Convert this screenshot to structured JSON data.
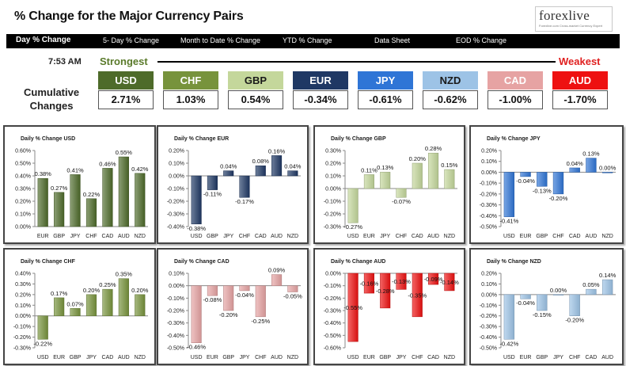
{
  "header": {
    "title": "% Change for the Major Currency Pairs",
    "logo_text": "forexlive",
    "logo_subtext": "Forexlive.com Cross-market Currency Expert"
  },
  "nav": [
    {
      "label": "Day % Change",
      "active": true
    },
    {
      "label": "5- Day % Change",
      "active": false
    },
    {
      "label": "Month to Date % Change",
      "active": false
    },
    {
      "label": "YTD % Change",
      "active": false
    },
    {
      "label": "Data Sheet",
      "active": false
    },
    {
      "label": "EOD % Change",
      "active": false
    }
  ],
  "ranking": {
    "time": "7:53 AM",
    "strongest_label": "Strongest",
    "weakest_label": "Weakest",
    "cumulative_label_line1": "Cumulative",
    "cumulative_label_line2": "Changes",
    "currencies": [
      {
        "name": "USD",
        "value": "2.71%",
        "color": "#4e6b2a",
        "text_color": "#ffffff"
      },
      {
        "name": "CHF",
        "value": "1.03%",
        "color": "#77933c",
        "text_color": "#ffffff"
      },
      {
        "name": "GBP",
        "value": "0.54%",
        "color": "#c4d79b",
        "text_color": "#1a1a1a"
      },
      {
        "name": "EUR",
        "value": "-0.34%",
        "color": "#1f3864",
        "text_color": "#ffffff"
      },
      {
        "name": "JPY",
        "value": "-0.61%",
        "color": "#2f75d6",
        "text_color": "#ffffff"
      },
      {
        "name": "NZD",
        "value": "-0.62%",
        "color": "#9dc3e6",
        "text_color": "#1a1a1a"
      },
      {
        "name": "CAD",
        "value": "-1.00%",
        "color": "#e6a3a3",
        "text_color": "#ffffff"
      },
      {
        "name": "AUD",
        "value": "-1.70%",
        "color": "#ee1111",
        "text_color": "#ffffff"
      }
    ]
  },
  "chart_data": [
    {
      "type": "bar",
      "title": "Daily % Change USD",
      "color": "#4e6b2a",
      "label_pos": "end",
      "categories": [
        "EUR",
        "GBP",
        "JPY",
        "CHF",
        "CAD",
        "AUD",
        "NZD"
      ],
      "values": [
        0.38,
        0.27,
        0.41,
        0.22,
        0.46,
        0.55,
        0.42
      ],
      "value_labels": [
        "0.38%",
        "0.27%",
        "0.41%",
        "0.22%",
        "0.46%",
        "0.55%",
        "0.42%"
      ],
      "ylim": [
        0,
        0.6
      ],
      "yticks": [
        0,
        0.1,
        0.2,
        0.3,
        0.4,
        0.5,
        0.6
      ],
      "ytick_labels": [
        "0.00%",
        "0.10%",
        "0.20%",
        "0.30%",
        "0.40%",
        "0.50%",
        "0.60%"
      ]
    },
    {
      "type": "bar",
      "title": "Daily % Change EUR",
      "color": "#1f3864",
      "label_pos": "end",
      "categories": [
        "USD",
        "GBP",
        "JPY",
        "CHF",
        "CAD",
        "AUD",
        "NZD"
      ],
      "values": [
        -0.38,
        -0.11,
        0.04,
        -0.17,
        0.08,
        0.16,
        0.04
      ],
      "value_labels": [
        "-0.38%",
        "-0.11%",
        "0.04%",
        "-0.17%",
        "0.08%",
        "0.16%",
        "0.04%"
      ],
      "ylim": [
        -0.4,
        0.2
      ],
      "yticks": [
        0.2,
        0.1,
        0,
        -0.1,
        -0.2,
        -0.3,
        -0.4
      ],
      "ytick_labels": [
        "0.20%",
        "0.10%",
        "0.00%",
        "-0.10%",
        "-0.20%",
        "-0.30%",
        "-0.40%"
      ]
    },
    {
      "type": "bar",
      "title": "Daily % Change GBP",
      "color": "#c4d79b",
      "label_pos": "end",
      "categories": [
        "USD",
        "EUR",
        "JPY",
        "CHF",
        "CAD",
        "AUD",
        "NZD"
      ],
      "values": [
        -0.27,
        0.11,
        0.13,
        -0.07,
        0.2,
        0.28,
        0.15
      ],
      "value_labels": [
        "-0.27%",
        "0.11%",
        "0.13%",
        "-0.07%",
        "0.20%",
        "0.28%",
        "0.15%"
      ],
      "ylim": [
        -0.3,
        0.3
      ],
      "yticks": [
        0.3,
        0.2,
        0.1,
        0,
        -0.1,
        -0.2,
        -0.3
      ],
      "ytick_labels": [
        "0.30%",
        "0.20%",
        "0.10%",
        "0.00%",
        "-0.10%",
        "-0.20%",
        "-0.30%"
      ]
    },
    {
      "type": "bar",
      "title": "Daily % Change JPY",
      "color": "#2f75d6",
      "label_pos": "end",
      "categories": [
        "USD",
        "EUR",
        "GBP",
        "CHF",
        "CAD",
        "AUD",
        "NZD"
      ],
      "values": [
        -0.41,
        -0.04,
        -0.13,
        -0.2,
        0.04,
        0.13,
        0.0
      ],
      "value_labels": [
        "-0.41%",
        "-0.04%",
        "-0.13%",
        "-0.20%",
        "0.04%",
        "0.13%",
        "0.00%"
      ],
      "ylim": [
        -0.5,
        0.2
      ],
      "yticks": [
        0.2,
        0.1,
        0,
        -0.1,
        -0.2,
        -0.3,
        -0.4,
        -0.5
      ],
      "ytick_labels": [
        "0.20%",
        "0.10%",
        "0.00%",
        "-0.10%",
        "-0.20%",
        "-0.30%",
        "-0.40%",
        "-0.50%"
      ]
    },
    {
      "type": "bar",
      "title": "Daily % Change CHF",
      "color": "#77933c",
      "label_pos": "end",
      "categories": [
        "USD",
        "EUR",
        "GBP",
        "JPY",
        "CAD",
        "AUD",
        "NZD"
      ],
      "values": [
        -0.22,
        0.17,
        0.07,
        0.2,
        0.25,
        0.35,
        0.2
      ],
      "value_labels": [
        "-0.22%",
        "0.17%",
        "0.07%",
        "0.20%",
        "0.25%",
        "0.35%",
        "0.20%"
      ],
      "ylim": [
        -0.3,
        0.4
      ],
      "yticks": [
        0.4,
        0.3,
        0.2,
        0.1,
        0,
        -0.1,
        -0.2,
        -0.3
      ],
      "ytick_labels": [
        "0.40%",
        "0.30%",
        "0.20%",
        "0.10%",
        "0.00%",
        "-0.10%",
        "-0.20%",
        "-0.30%"
      ]
    },
    {
      "type": "bar",
      "title": "Daily % Change CAD",
      "color": "#e6a3a3",
      "label_pos": "end",
      "categories": [
        "USD",
        "EUR",
        "GBP",
        "JPY",
        "CHF",
        "AUD",
        "NZD"
      ],
      "values": [
        -0.46,
        -0.08,
        -0.2,
        -0.04,
        -0.25,
        0.09,
        -0.05
      ],
      "value_labels": [
        "-0.46%",
        "-0.08%",
        "-0.20%",
        "-0.04%",
        "-0.25%",
        "0.09%",
        "-0.05%"
      ],
      "ylim": [
        -0.5,
        0.1
      ],
      "yticks": [
        0.1,
        0,
        -0.1,
        -0.2,
        -0.3,
        -0.4,
        -0.5
      ],
      "ytick_labels": [
        "0.10%",
        "0.00%",
        "-0.10%",
        "-0.20%",
        "-0.30%",
        "-0.40%",
        "-0.50%"
      ]
    },
    {
      "type": "bar",
      "title": "Daily % Change AUD",
      "color": "#ee1111",
      "label_pos": "mid",
      "categories": [
        "USD",
        "EUR",
        "GBP",
        "JPY",
        "CHF",
        "CAD",
        "NZD"
      ],
      "values": [
        -0.55,
        -0.16,
        -0.28,
        -0.13,
        -0.35,
        -0.09,
        -0.14
      ],
      "value_labels": [
        "-0.55%",
        "-0.16%",
        "-0.28%",
        "-0.13%",
        "-0.35%",
        "-0.09%",
        "-0.14%"
      ],
      "ylim": [
        -0.6,
        0.0
      ],
      "yticks": [
        0,
        -0.1,
        -0.2,
        -0.3,
        -0.4,
        -0.5,
        -0.6
      ],
      "ytick_labels": [
        "0.00%",
        "-0.10%",
        "-0.20%",
        "-0.30%",
        "-0.40%",
        "-0.50%",
        "-0.60%"
      ]
    },
    {
      "type": "bar",
      "title": "Daily % Change NZD",
      "color": "#9dc3e6",
      "label_pos": "end",
      "categories": [
        "USD",
        "EUR",
        "GBP",
        "JPY",
        "CHF",
        "CAD",
        "AUD"
      ],
      "values": [
        -0.42,
        -0.04,
        -0.15,
        0.0,
        -0.2,
        0.05,
        0.14
      ],
      "value_labels": [
        "-0.42%",
        "-0.04%",
        "-0.15%",
        "0.00%",
        "-0.20%",
        "0.05%",
        "0.14%"
      ],
      "ylim": [
        -0.5,
        0.2
      ],
      "yticks": [
        0.2,
        0.1,
        0,
        -0.1,
        -0.2,
        -0.3,
        -0.4,
        -0.5
      ],
      "ytick_labels": [
        "0.20%",
        "0.10%",
        "0.00%",
        "-0.10%",
        "-0.20%",
        "-0.30%",
        "-0.40%",
        "-0.50%"
      ]
    }
  ]
}
